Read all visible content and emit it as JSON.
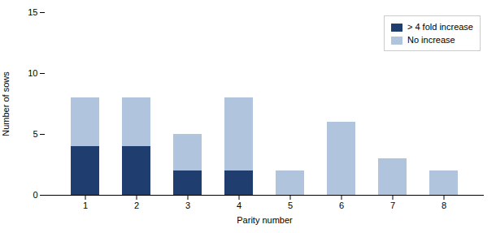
{
  "chart_data": {
    "type": "bar",
    "stacked": true,
    "categories": [
      "1",
      "2",
      "3",
      "4",
      "5",
      "6",
      "7",
      "8"
    ],
    "series": [
      {
        "name": "> 4 fold increase",
        "color": "#1f3d6e",
        "values": [
          4,
          4,
          2,
          2,
          0,
          0,
          0,
          0
        ]
      },
      {
        "name": "No increase",
        "color": "#b0c4de",
        "values": [
          4,
          4,
          3,
          6,
          2,
          6,
          3,
          2
        ]
      }
    ],
    "xlabel": "Parity number",
    "ylabel": "Number of sows",
    "ylim": [
      0,
      15
    ],
    "yticks": [
      0,
      5,
      10,
      15
    ],
    "grid": false,
    "legend": "upper right"
  }
}
